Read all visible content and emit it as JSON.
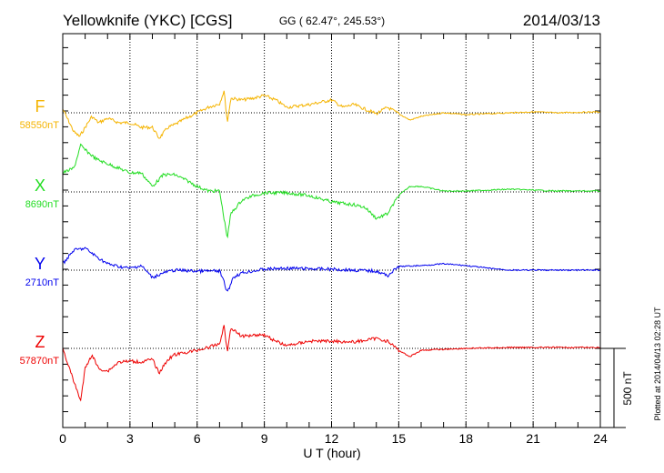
{
  "chart_data": {
    "type": "line",
    "title": "Yellowknife (YKC)  [CGS]",
    "coords": "GG ( 62.47°, 245.53°)",
    "date": "2014/03/13",
    "xlabel": "U T (hour)",
    "xlim": [
      0,
      24
    ],
    "xticks": [
      "0",
      "3",
      "6",
      "9",
      "12",
      "15",
      "18",
      "21",
      "24"
    ],
    "scale_label": "500 nT",
    "scale_nT": 500,
    "plotted_note": "Plotted at 2014/04/13 02:28 UT",
    "series": [
      {
        "name": "F",
        "baseline_label": "58550nT",
        "baseline_nT": 58550,
        "color": "#f5b400",
        "points": [
          [
            0,
            23
          ],
          [
            0.5,
            -121
          ],
          [
            0.75,
            -150
          ],
          [
            1,
            -92
          ],
          [
            1.3,
            -23
          ],
          [
            1.6,
            -63
          ],
          [
            2,
            -35
          ],
          [
            2.5,
            -63
          ],
          [
            3,
            -63
          ],
          [
            3.5,
            -92
          ],
          [
            4,
            -92
          ],
          [
            4.3,
            -161
          ],
          [
            4.7,
            -92
          ],
          [
            5,
            -75
          ],
          [
            5.5,
            -35
          ],
          [
            6,
            0
          ],
          [
            6.5,
            35
          ],
          [
            7,
            58
          ],
          [
            7.2,
            138
          ],
          [
            7.35,
            -63
          ],
          [
            7.5,
            92
          ],
          [
            8,
            81
          ],
          [
            8.5,
            92
          ],
          [
            9,
            109
          ],
          [
            9.5,
            81
          ],
          [
            10,
            35
          ],
          [
            11,
            52
          ],
          [
            12,
            81
          ],
          [
            12.5,
            35
          ],
          [
            13,
            52
          ],
          [
            14,
            -6
          ],
          [
            14.5,
            35
          ],
          [
            15,
            -6
          ],
          [
            15.5,
            -46
          ],
          [
            16,
            -23
          ],
          [
            17,
            0
          ],
          [
            18,
            -12
          ],
          [
            19,
            -6
          ],
          [
            20,
            0
          ],
          [
            21,
            6
          ],
          [
            22,
            0
          ],
          [
            24,
            6
          ]
        ]
      },
      {
        "name": "X",
        "baseline_label": "8690nT",
        "baseline_nT": 8690,
        "color": "#22dd22",
        "points": [
          [
            0,
            121
          ],
          [
            0.5,
            150
          ],
          [
            0.8,
            294
          ],
          [
            1,
            265
          ],
          [
            1.5,
            207
          ],
          [
            2,
            178
          ],
          [
            2.5,
            150
          ],
          [
            3,
            121
          ],
          [
            3.5,
            121
          ],
          [
            4,
            35
          ],
          [
            4.5,
            109
          ],
          [
            5,
            109
          ],
          [
            5.5,
            75
          ],
          [
            6,
            35
          ],
          [
            6.5,
            6
          ],
          [
            7,
            6
          ],
          [
            7.2,
            -167
          ],
          [
            7.35,
            -293
          ],
          [
            7.5,
            -138
          ],
          [
            8,
            -52
          ],
          [
            8.5,
            -23
          ],
          [
            9,
            -6
          ],
          [
            10,
            -6
          ],
          [
            11,
            -23
          ],
          [
            12,
            -63
          ],
          [
            13,
            -81
          ],
          [
            13.5,
            -98
          ],
          [
            14,
            -167
          ],
          [
            14.5,
            -138
          ],
          [
            15,
            -23
          ],
          [
            15.5,
            35
          ],
          [
            16,
            35
          ],
          [
            17,
            6
          ],
          [
            18,
            6
          ],
          [
            20,
            17
          ],
          [
            22,
            6
          ],
          [
            24,
            6
          ]
        ]
      },
      {
        "name": "Y",
        "baseline_label": "2710nT",
        "baseline_nT": 2710,
        "color": "#0000ee",
        "points": [
          [
            0,
            40
          ],
          [
            0.5,
            127
          ],
          [
            1,
            138
          ],
          [
            1.5,
            86
          ],
          [
            2,
            40
          ],
          [
            2.5,
            23
          ],
          [
            3,
            12
          ],
          [
            3.5,
            29
          ],
          [
            4,
            -46
          ],
          [
            4.5,
            -17
          ],
          [
            5,
            0
          ],
          [
            6,
            -6
          ],
          [
            6.5,
            -6
          ],
          [
            7,
            -6
          ],
          [
            7.2,
            -75
          ],
          [
            7.35,
            -144
          ],
          [
            7.6,
            -46
          ],
          [
            8,
            -17
          ],
          [
            9,
            6
          ],
          [
            10,
            12
          ],
          [
            12,
            6
          ],
          [
            13,
            0
          ],
          [
            14,
            -6
          ],
          [
            14.5,
            -35
          ],
          [
            15,
            23
          ],
          [
            16,
            29
          ],
          [
            17,
            40
          ],
          [
            18,
            29
          ],
          [
            19,
            12
          ],
          [
            20,
            0
          ],
          [
            22,
            0
          ],
          [
            24,
            0
          ]
        ]
      },
      {
        "name": "Z",
        "baseline_label": "57870nT",
        "baseline_nT": 57870,
        "color": "#ee0000",
        "points": [
          [
            0,
            0
          ],
          [
            0.5,
            -213
          ],
          [
            0.8,
            -328
          ],
          [
            1,
            -127
          ],
          [
            1.3,
            -40
          ],
          [
            1.6,
            -127
          ],
          [
            2,
            -144
          ],
          [
            2.5,
            -86
          ],
          [
            3,
            -81
          ],
          [
            3.5,
            -86
          ],
          [
            4,
            -69
          ],
          [
            4.3,
            -155
          ],
          [
            4.7,
            -69
          ],
          [
            5,
            -40
          ],
          [
            6,
            -12
          ],
          [
            6.5,
            6
          ],
          [
            7,
            29
          ],
          [
            7.2,
            144
          ],
          [
            7.35,
            -29
          ],
          [
            7.5,
            132
          ],
          [
            8,
            75
          ],
          [
            8.5,
            86
          ],
          [
            9,
            86
          ],
          [
            9.5,
            46
          ],
          [
            10,
            17
          ],
          [
            11,
            46
          ],
          [
            12,
            46
          ],
          [
            13,
            40
          ],
          [
            14,
            63
          ],
          [
            14.5,
            46
          ],
          [
            15,
            -12
          ],
          [
            15.5,
            -52
          ],
          [
            16,
            -12
          ],
          [
            18,
            0
          ],
          [
            20,
            6
          ],
          [
            24,
            6
          ]
        ]
      }
    ]
  }
}
